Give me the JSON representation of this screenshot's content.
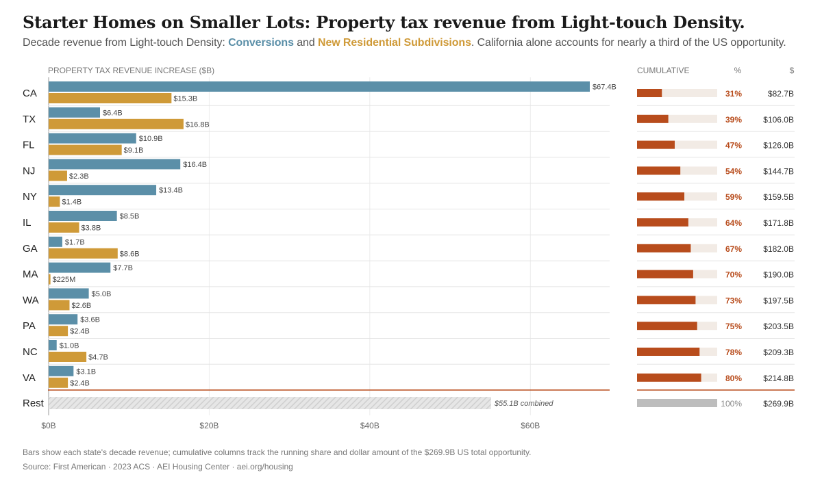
{
  "header": {
    "title": "Starter Homes on Smaller Lots: Property tax revenue from Light-touch Density.",
    "subtitle_pre": "Decade revenue from Light-touch Density: ",
    "subtitle_series1": "Conversions",
    "subtitle_mid": " and ",
    "subtitle_series2": "New Residential Subdivisions",
    "subtitle_post": ". California alone accounts for nearly a third of the US opportunity."
  },
  "footer": {
    "note": "Bars show each state's decade revenue; cumulative columns track the running share and dollar amount of the $269.9B US total opportunity.",
    "source": "Source: First American · 2023 ACS · AEI Housing Center · aei.org/housing"
  },
  "colors": {
    "conversions": "#5b8fa8",
    "subdivisions": "#cf9a38",
    "cumulative_bar": "#b84c1c",
    "cumulative_track": "#f2ebe5",
    "rest_bar": "#d9d9d9",
    "rest_cumulative": "#bdbdbd"
  },
  "chart_data": {
    "type": "bar",
    "orientation": "horizontal",
    "xlabel": "PROPERTY TAX REVENUE INCREASE ($B)",
    "xlim": [
      0,
      70
    ],
    "x_ticks": [
      0,
      20,
      40,
      60
    ],
    "x_tick_labels": [
      "$0B",
      "$20B",
      "$40B",
      "$60B"
    ],
    "grid": true,
    "categories": [
      "CA",
      "TX",
      "FL",
      "NJ",
      "NY",
      "IL",
      "GA",
      "MA",
      "WA",
      "PA",
      "NC",
      "VA"
    ],
    "series": [
      {
        "name": "Conversions",
        "values": [
          67.4,
          6.4,
          10.9,
          16.4,
          13.4,
          8.5,
          1.7,
          7.7,
          5.0,
          3.6,
          1.0,
          3.1
        ],
        "labels": [
          "$67.4B",
          "$6.4B",
          "$10.9B",
          "$16.4B",
          "$13.4B",
          "$8.5B",
          "$1.7B",
          "$7.7B",
          "$5.0B",
          "$3.6B",
          "$1.0B",
          "$3.1B"
        ]
      },
      {
        "name": "New Residential Subdivisions",
        "values": [
          15.3,
          16.8,
          9.1,
          2.3,
          1.4,
          3.8,
          8.6,
          0.225,
          2.6,
          2.4,
          4.7,
          2.4
        ],
        "labels": [
          "$15.3B",
          "$16.8B",
          "$9.1B",
          "$2.3B",
          "$1.4B",
          "$3.8B",
          "$8.6B",
          "$225M",
          "$2.6B",
          "$2.4B",
          "$4.7B",
          "$2.4B"
        ]
      }
    ],
    "rest": {
      "label": "Rest",
      "value": 55.1,
      "value_label": "$55.1B combined"
    },
    "cumulative": {
      "header": "CUMULATIVE",
      "pct_header": "%",
      "dollar_header": "$",
      "pct": [
        31,
        39,
        47,
        54,
        59,
        64,
        67,
        70,
        73,
        75,
        78,
        80
      ],
      "pct_labels": [
        "31%",
        "39%",
        "47%",
        "54%",
        "59%",
        "64%",
        "67%",
        "70%",
        "73%",
        "75%",
        "78%",
        "80%"
      ],
      "dollar_labels": [
        "$82.7B",
        "$106.0B",
        "$126.0B",
        "$144.7B",
        "$159.5B",
        "$171.8B",
        "$182.0B",
        "$190.0B",
        "$197.5B",
        "$203.5B",
        "$209.3B",
        "$214.8B"
      ],
      "rest_pct": 100,
      "rest_pct_label": "100%",
      "rest_dollar_label": "$269.9B"
    }
  }
}
